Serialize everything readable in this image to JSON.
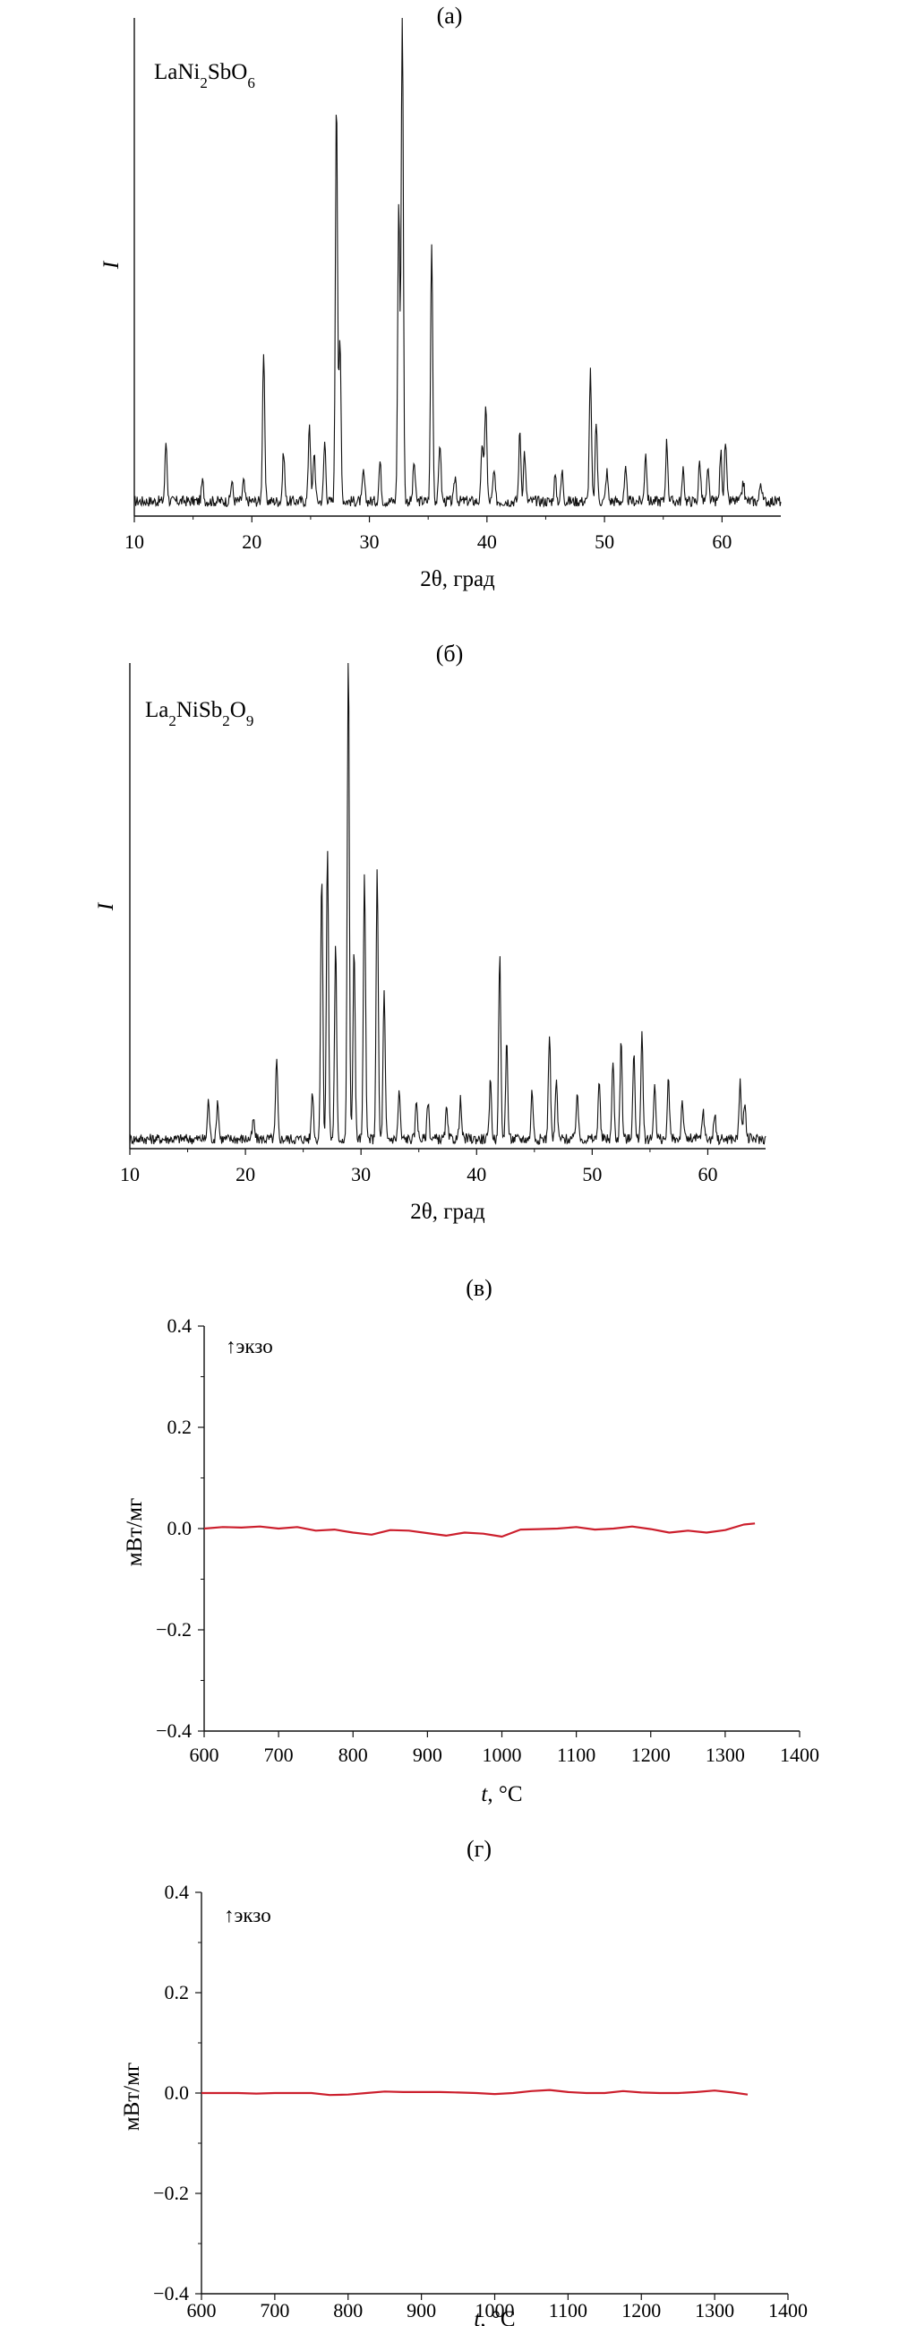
{
  "figure": {
    "panels": [
      {
        "id": "a",
        "label": "(а)"
      },
      {
        "id": "b",
        "label": "(б)"
      },
      {
        "id": "c",
        "label": "(в)"
      },
      {
        "id": "d",
        "label": "(г)"
      }
    ]
  },
  "colors": {
    "xrd_line": "#111111",
    "dsc_line": "#cc1f2d",
    "axis": "#111111"
  },
  "chart_data": [
    {
      "type": "line",
      "panel": "(а)",
      "annotation": {
        "base": "LaNi",
        "sub1": "2",
        "mid": "SbO",
        "sub2": "6"
      },
      "xlabel": "2θ, град",
      "ylabel": "I",
      "xlim": [
        10,
        65
      ],
      "xticks": [
        "10",
        "20",
        "30",
        "40",
        "50",
        "60"
      ],
      "ylim": [
        0,
        100
      ],
      "y_ticks_shown": false,
      "baseline": 3,
      "peaks": [
        {
          "x": 12.7,
          "y": 12
        },
        {
          "x": 15.8,
          "y": 4
        },
        {
          "x": 18.3,
          "y": 4
        },
        {
          "x": 19.3,
          "y": 4
        },
        {
          "x": 21.0,
          "y": 30
        },
        {
          "x": 22.7,
          "y": 10
        },
        {
          "x": 24.9,
          "y": 16
        },
        {
          "x": 25.3,
          "y": 10
        },
        {
          "x": 26.2,
          "y": 12
        },
        {
          "x": 27.2,
          "y": 82
        },
        {
          "x": 27.5,
          "y": 32
        },
        {
          "x": 29.5,
          "y": 6
        },
        {
          "x": 30.9,
          "y": 8
        },
        {
          "x": 32.5,
          "y": 60
        },
        {
          "x": 32.8,
          "y": 100
        },
        {
          "x": 33.8,
          "y": 8
        },
        {
          "x": 35.3,
          "y": 52
        },
        {
          "x": 36.0,
          "y": 12
        },
        {
          "x": 37.3,
          "y": 5
        },
        {
          "x": 39.6,
          "y": 12
        },
        {
          "x": 39.9,
          "y": 20
        },
        {
          "x": 40.6,
          "y": 6
        },
        {
          "x": 42.8,
          "y": 14
        },
        {
          "x": 43.2,
          "y": 10
        },
        {
          "x": 45.8,
          "y": 5
        },
        {
          "x": 46.4,
          "y": 6
        },
        {
          "x": 48.8,
          "y": 26
        },
        {
          "x": 49.3,
          "y": 16
        },
        {
          "x": 50.2,
          "y": 6
        },
        {
          "x": 51.8,
          "y": 6
        },
        {
          "x": 53.5,
          "y": 10
        },
        {
          "x": 55.3,
          "y": 12
        },
        {
          "x": 56.7,
          "y": 6
        },
        {
          "x": 58.1,
          "y": 8
        },
        {
          "x": 58.8,
          "y": 6
        },
        {
          "x": 59.9,
          "y": 10
        },
        {
          "x": 60.3,
          "y": 12
        },
        {
          "x": 61.8,
          "y": 4
        },
        {
          "x": 63.3,
          "y": 4
        }
      ]
    },
    {
      "type": "line",
      "panel": "(б)",
      "annotation": {
        "base": "La",
        "sub1": "2",
        "mid": "NiSb",
        "sub2": "2",
        "tail": "O",
        "sub3": "9"
      },
      "xlabel": "2θ, град",
      "ylabel": "I",
      "xlim": [
        10,
        65
      ],
      "xticks": [
        "10",
        "20",
        "30",
        "40",
        "50",
        "60"
      ],
      "ylim": [
        0,
        100
      ],
      "y_ticks_shown": false,
      "baseline": 2,
      "peaks": [
        {
          "x": 16.8,
          "y": 8
        },
        {
          "x": 17.6,
          "y": 8
        },
        {
          "x": 20.7,
          "y": 4
        },
        {
          "x": 22.7,
          "y": 16
        },
        {
          "x": 25.8,
          "y": 10
        },
        {
          "x": 26.6,
          "y": 55
        },
        {
          "x": 27.1,
          "y": 60
        },
        {
          "x": 27.8,
          "y": 40
        },
        {
          "x": 28.9,
          "y": 100
        },
        {
          "x": 29.4,
          "y": 40
        },
        {
          "x": 30.3,
          "y": 55
        },
        {
          "x": 31.4,
          "y": 55
        },
        {
          "x": 32.0,
          "y": 30
        },
        {
          "x": 33.3,
          "y": 10
        },
        {
          "x": 34.8,
          "y": 8
        },
        {
          "x": 35.8,
          "y": 8
        },
        {
          "x": 37.4,
          "y": 6
        },
        {
          "x": 38.6,
          "y": 8
        },
        {
          "x": 41.2,
          "y": 12
        },
        {
          "x": 42.0,
          "y": 38
        },
        {
          "x": 42.6,
          "y": 20
        },
        {
          "x": 44.8,
          "y": 10
        },
        {
          "x": 46.3,
          "y": 22
        },
        {
          "x": 46.9,
          "y": 12
        },
        {
          "x": 48.7,
          "y": 10
        },
        {
          "x": 50.6,
          "y": 12
        },
        {
          "x": 51.8,
          "y": 16
        },
        {
          "x": 52.5,
          "y": 20
        },
        {
          "x": 53.6,
          "y": 18
        },
        {
          "x": 54.3,
          "y": 22
        },
        {
          "x": 55.4,
          "y": 12
        },
        {
          "x": 56.6,
          "y": 12
        },
        {
          "x": 57.8,
          "y": 8
        },
        {
          "x": 59.6,
          "y": 6
        },
        {
          "x": 60.6,
          "y": 5
        },
        {
          "x": 62.8,
          "y": 12
        },
        {
          "x": 63.2,
          "y": 8
        }
      ]
    },
    {
      "type": "line",
      "panel": "(в)",
      "annotation": "↑экзо",
      "xlabel": "t, °C",
      "ylabel": "мВт/мг",
      "xlim": [
        600,
        1400
      ],
      "ylim": [
        -0.4,
        0.4
      ],
      "xticks": [
        "600",
        "700",
        "800",
        "900",
        "1000",
        "1100",
        "1200",
        "1300",
        "1400"
      ],
      "yticks": [
        "0.4",
        "0.2",
        "0.0",
        "−0.2",
        "−0.4"
      ],
      "x": [
        600,
        625,
        650,
        675,
        700,
        725,
        750,
        775,
        800,
        825,
        850,
        875,
        900,
        925,
        950,
        975,
        1000,
        1025,
        1050,
        1075,
        1100,
        1125,
        1150,
        1175,
        1200,
        1225,
        1250,
        1275,
        1300,
        1325,
        1340
      ],
      "y": [
        0.0,
        0.003,
        0.002,
        0.004,
        0.0,
        0.003,
        -0.004,
        -0.002,
        -0.008,
        -0.012,
        -0.003,
        -0.004,
        -0.009,
        -0.014,
        -0.008,
        -0.01,
        -0.016,
        -0.002,
        -0.001,
        0.0,
        0.003,
        -0.002,
        0.0,
        0.004,
        -0.001,
        -0.008,
        -0.004,
        -0.008,
        -0.003,
        0.008,
        0.01
      ]
    },
    {
      "type": "line",
      "panel": "(г)",
      "annotation": "↑экзо",
      "xlabel": "t, °C",
      "ylabel": "мВт/мг",
      "xlim": [
        600,
        1400
      ],
      "ylim": [
        -0.4,
        0.4
      ],
      "xticks": [
        "600",
        "700",
        "800",
        "900",
        "1000",
        "1100",
        "1200",
        "1300",
        "1400"
      ],
      "yticks": [
        "0.4",
        "0.2",
        "0.0",
        "−0.2",
        "−0.4"
      ],
      "x": [
        600,
        625,
        650,
        675,
        700,
        725,
        750,
        775,
        800,
        825,
        850,
        875,
        900,
        925,
        950,
        975,
        1000,
        1025,
        1050,
        1075,
        1100,
        1125,
        1150,
        1175,
        1200,
        1225,
        1250,
        1275,
        1300,
        1325,
        1345
      ],
      "y": [
        0.0,
        0.0,
        0.0,
        -0.001,
        0.0,
        0.0,
        0.0,
        -0.004,
        -0.003,
        0.0,
        0.003,
        0.002,
        0.002,
        0.002,
        0.001,
        0.0,
        -0.002,
        0.0,
        0.004,
        0.006,
        0.002,
        0.0,
        0.0,
        0.004,
        0.001,
        0.0,
        0.0,
        0.002,
        0.005,
        0.001,
        -0.003
      ]
    }
  ]
}
